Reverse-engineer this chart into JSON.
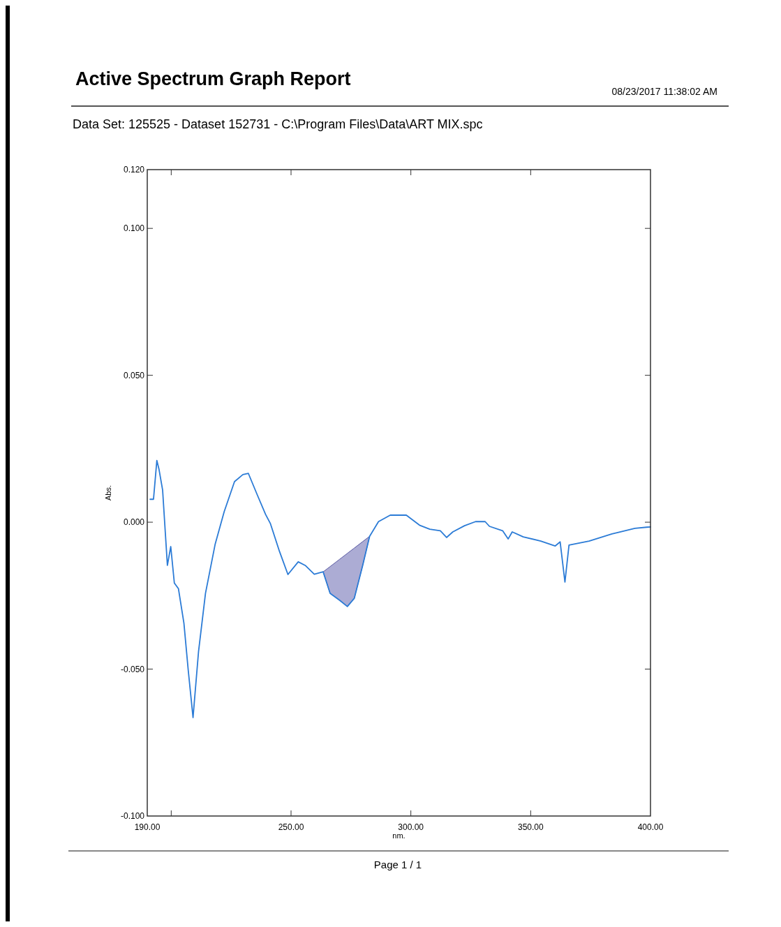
{
  "chart_data": {
    "type": "line",
    "title": "Active Spectrum Graph Report",
    "subtitle": "Data Set: 125525 - Dataset 152731 - C:\\Program Files\\Data\\ART MIX.spc",
    "xlabel": "nm.",
    "ylabel": "Abs.",
    "annotations": [
      "08/23/2017  11:38:02 AM",
      "Page 1 / 1"
    ],
    "xlim": [
      190,
      400
    ],
    "ylim": [
      -0.1,
      0.12
    ],
    "xticks": [
      {
        "value": 190,
        "label": "190.00"
      },
      {
        "value": 200,
        "label": null
      },
      {
        "value": 250,
        "label": "250.00"
      },
      {
        "value": 300,
        "label": "300.00"
      },
      {
        "value": 350,
        "label": "350.00"
      },
      {
        "value": 400,
        "label": "400.00"
      }
    ],
    "yticks": [
      {
        "value": -0.1,
        "label": "-0.100"
      },
      {
        "value": -0.05,
        "label": "-0.050"
      },
      {
        "value": 0,
        "label": "0.000"
      },
      {
        "value": 0.05,
        "label": "0.050"
      },
      {
        "value": 0.1,
        "label": "0.100"
      },
      {
        "value": 0.12,
        "label": "0.120"
      }
    ],
    "grid": false,
    "line_style": "solid",
    "series": [
      {
        "color": "#2b7bd6",
        "lower": [
          null,
          null,
          null,
          null,
          null,
          null,
          null,
          null,
          null,
          null,
          null,
          null,
          null,
          null,
          null,
          null,
          null,
          null,
          null,
          null,
          null,
          null,
          null,
          null,
          null,
          null,
          null,
          -0.0169,
          -0.0242,
          -0.0266,
          -0.0287,
          -0.0259,
          -0.0147,
          -0.0048,
          null,
          null,
          null,
          null,
          null,
          null,
          null,
          null,
          null,
          null,
          null,
          null,
          null,
          null,
          null,
          null,
          null,
          null,
          null,
          null,
          null,
          null,
          null,
          null,
          null,
          null
        ],
        "upper": [
          null,
          null,
          null,
          null,
          null,
          null,
          null,
          null,
          null,
          null,
          null,
          null,
          null,
          null,
          null,
          null,
          null,
          null,
          null,
          null,
          null,
          null,
          null,
          null,
          null,
          null,
          null,
          -0.0169,
          -0.0151,
          -0.0126,
          -0.0106,
          -0.0088,
          -0.0066,
          -0.0048,
          null,
          null,
          null,
          null,
          null,
          null,
          null,
          null,
          null,
          null,
          null,
          null,
          null,
          null,
          null,
          null,
          null,
          null,
          null,
          null,
          null,
          null,
          null,
          null,
          null,
          null
        ],
        "x": [
          191.2,
          192.6,
          194.0,
          194.9,
          196.4,
          198.4,
          199.8,
          201.3,
          203.0,
          205.3,
          207.1,
          209.1,
          211.4,
          214.3,
          218.3,
          222.1,
          226.4,
          229.9,
          232.2,
          235.7,
          239.4,
          241.4,
          245.2,
          248.7,
          253.0,
          255.9,
          259.7,
          263.4,
          266.3,
          270.3,
          273.5,
          276.4,
          279.9,
          282.8,
          286.5,
          291.4,
          298.1,
          303.6,
          307.9,
          312.3,
          314.9,
          317.5,
          322.4,
          327.0,
          331.0,
          332.8,
          338.3,
          340.6,
          342.3,
          346.9,
          354.2,
          360.2,
          362.3,
          364.3,
          366.0,
          374.4,
          383.9,
          393.5,
          398.4,
          400
        ],
        "values": [
          0.0078,
          0.0078,
          0.021,
          0.018,
          0.011,
          -0.0147,
          -0.0083,
          -0.0207,
          -0.0226,
          -0.0344,
          -0.0504,
          -0.0665,
          -0.044,
          -0.0242,
          -0.0076,
          0.0036,
          0.0138,
          0.0162,
          0.0166,
          0.0097,
          0.0026,
          -0.0005,
          -0.01,
          -0.0178,
          -0.0135,
          -0.0147,
          -0.0177,
          -0.0169,
          -0.0242,
          -0.0266,
          -0.0287,
          -0.0259,
          -0.0147,
          -0.0048,
          0.0002,
          0.0024,
          0.0024,
          -0.001,
          -0.0024,
          -0.0029,
          -0.0052,
          -0.0033,
          -0.0012,
          0.0002,
          0.0002,
          -0.0014,
          -0.0029,
          -0.0057,
          -0.0033,
          -0.005,
          -0.0064,
          -0.0081,
          -0.0067,
          -0.0204,
          -0.0078,
          -0.0064,
          -0.004,
          -0.0021,
          -0.0017,
          -0.0016
        ]
      }
    ]
  }
}
